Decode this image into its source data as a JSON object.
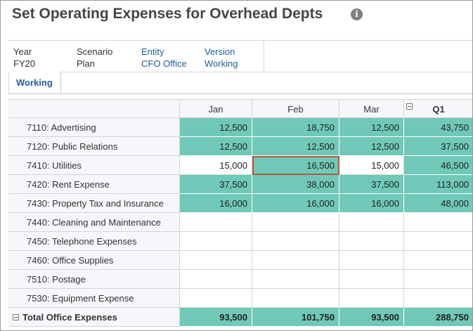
{
  "title": "Set Operating Expenses for Overhead Depts",
  "info_icon": "info-icon",
  "pov": [
    {
      "label": "Year",
      "value": "FY20",
      "link": false
    },
    {
      "label": "Scenario",
      "value": "Plan",
      "link": false
    },
    {
      "label": "Entity",
      "value": "CFO Office",
      "link": true
    },
    {
      "label": "Version",
      "value": "Working",
      "link": true
    }
  ],
  "tab": "Working",
  "grid": {
    "columns": [
      "Jan",
      "Feb",
      "Mar",
      "Q1"
    ],
    "rows": [
      {
        "label": "7110: Advertising",
        "values": [
          "12,500",
          "18,750",
          "12,500",
          "43,750"
        ]
      },
      {
        "label": "7120: Public Relations",
        "values": [
          "12,500",
          "12,500",
          "12,500",
          "37,500"
        ]
      },
      {
        "label": "7410: Utilities",
        "values": [
          "15,000",
          "16,500",
          "15,000",
          "46,500"
        ]
      },
      {
        "label": "7420: Rent Expense",
        "values": [
          "37,500",
          "38,000",
          "37,500",
          "113,000"
        ]
      },
      {
        "label": "7430: Property Tax and Insurance",
        "values": [
          "16,000",
          "16,000",
          "16,000",
          "48,000"
        ]
      },
      {
        "label": "7440: Cleaning and Maintenance",
        "values": [
          "",
          "",
          "",
          ""
        ]
      },
      {
        "label": "7450: Telephone Expenses",
        "values": [
          "",
          "",
          "",
          ""
        ]
      },
      {
        "label": "7460: Office Supplies",
        "values": [
          "",
          "",
          "",
          ""
        ]
      },
      {
        "label": "7510: Postage",
        "values": [
          "",
          "",
          "",
          ""
        ]
      },
      {
        "label": "7530: Equipment Expense",
        "values": [
          "",
          "",
          "",
          ""
        ]
      }
    ],
    "total": {
      "label": "Total Office Expenses",
      "values": [
        "93,500",
        "101,750",
        "93,500",
        "288,750"
      ]
    }
  },
  "colors": {
    "filled_cell": "#70c8b8",
    "selected_border": "#b5573f",
    "link": "#1f5e9c"
  }
}
